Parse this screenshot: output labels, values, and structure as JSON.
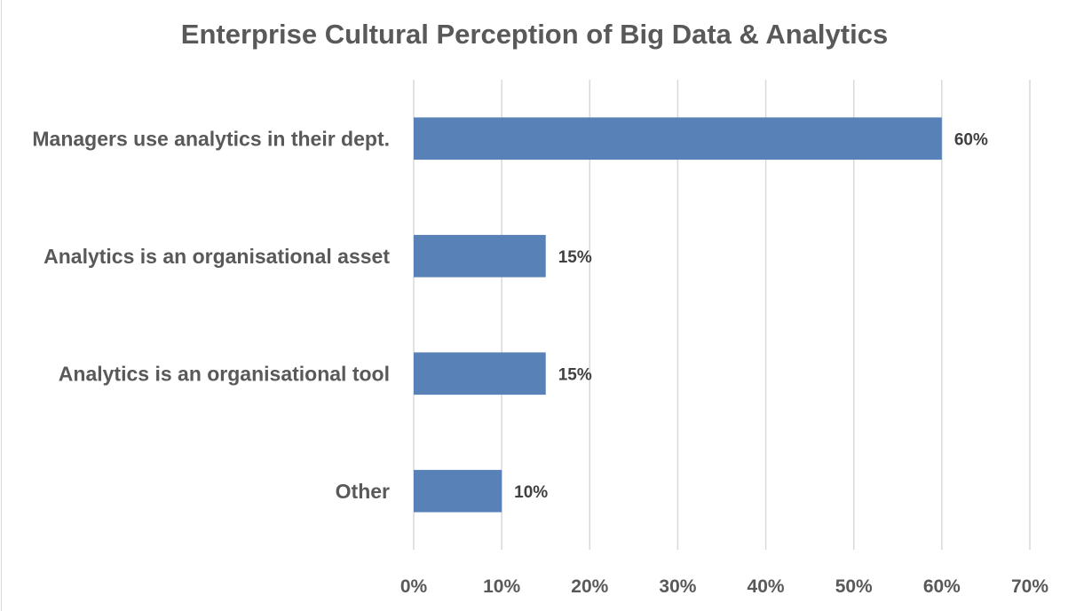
{
  "chart_data": {
    "type": "bar",
    "orientation": "horizontal",
    "title": "Enterprise Cultural Perception of Big Data & Analytics",
    "categories": [
      "Managers use analytics in their dept.",
      "Analytics is an organisational asset",
      "Analytics is an organisational tool",
      "Other"
    ],
    "values": [
      60,
      15,
      15,
      10
    ],
    "data_labels": [
      "60%",
      "15%",
      "15%",
      "10%"
    ],
    "x_ticks": [
      0,
      10,
      20,
      30,
      40,
      50,
      60,
      70
    ],
    "x_tick_labels": [
      "0%",
      "10%",
      "20%",
      "30%",
      "40%",
      "50%",
      "60%",
      "70%"
    ],
    "xlim": [
      0,
      70
    ],
    "xlabel": "",
    "ylabel": "",
    "grid": "vertical",
    "legend": "none",
    "bar_color": "#5881b8"
  }
}
